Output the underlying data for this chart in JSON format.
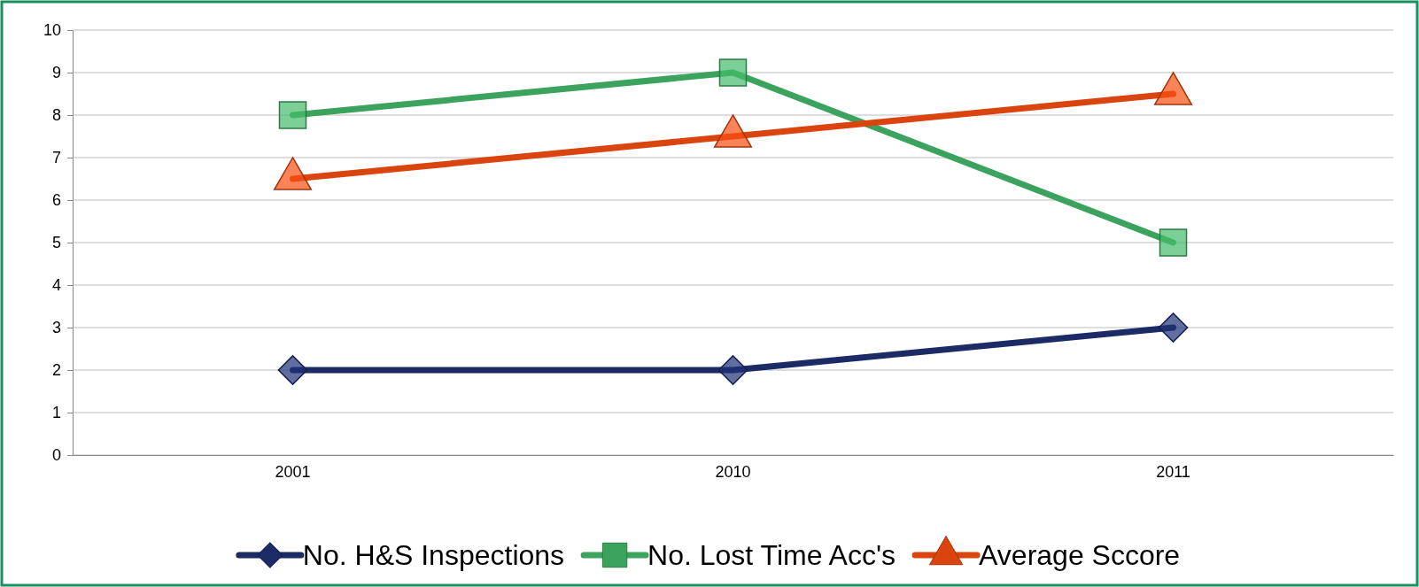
{
  "chart_data": {
    "type": "line",
    "categories": [
      "2001",
      "2010",
      "2011"
    ],
    "series": [
      {
        "name": "No. H&S Inspections",
        "color": "#1c2a66",
        "values": [
          2,
          2,
          3
        ],
        "marker": "diamond"
      },
      {
        "name": "No. Lost Time Acc's",
        "color": "#3ba35d",
        "values": [
          8,
          9,
          5
        ],
        "marker": "square"
      },
      {
        "name": "Average Sccore",
        "color": "#d9440f",
        "values": [
          6.5,
          7.5,
          8.5
        ],
        "marker": "triangle"
      }
    ],
    "ylim": [
      0,
      10
    ],
    "yticks": [
      0,
      1,
      2,
      3,
      4,
      5,
      6,
      7,
      8,
      9,
      10
    ],
    "grid": "y",
    "legend": "bottom",
    "line_style": "solid"
  }
}
